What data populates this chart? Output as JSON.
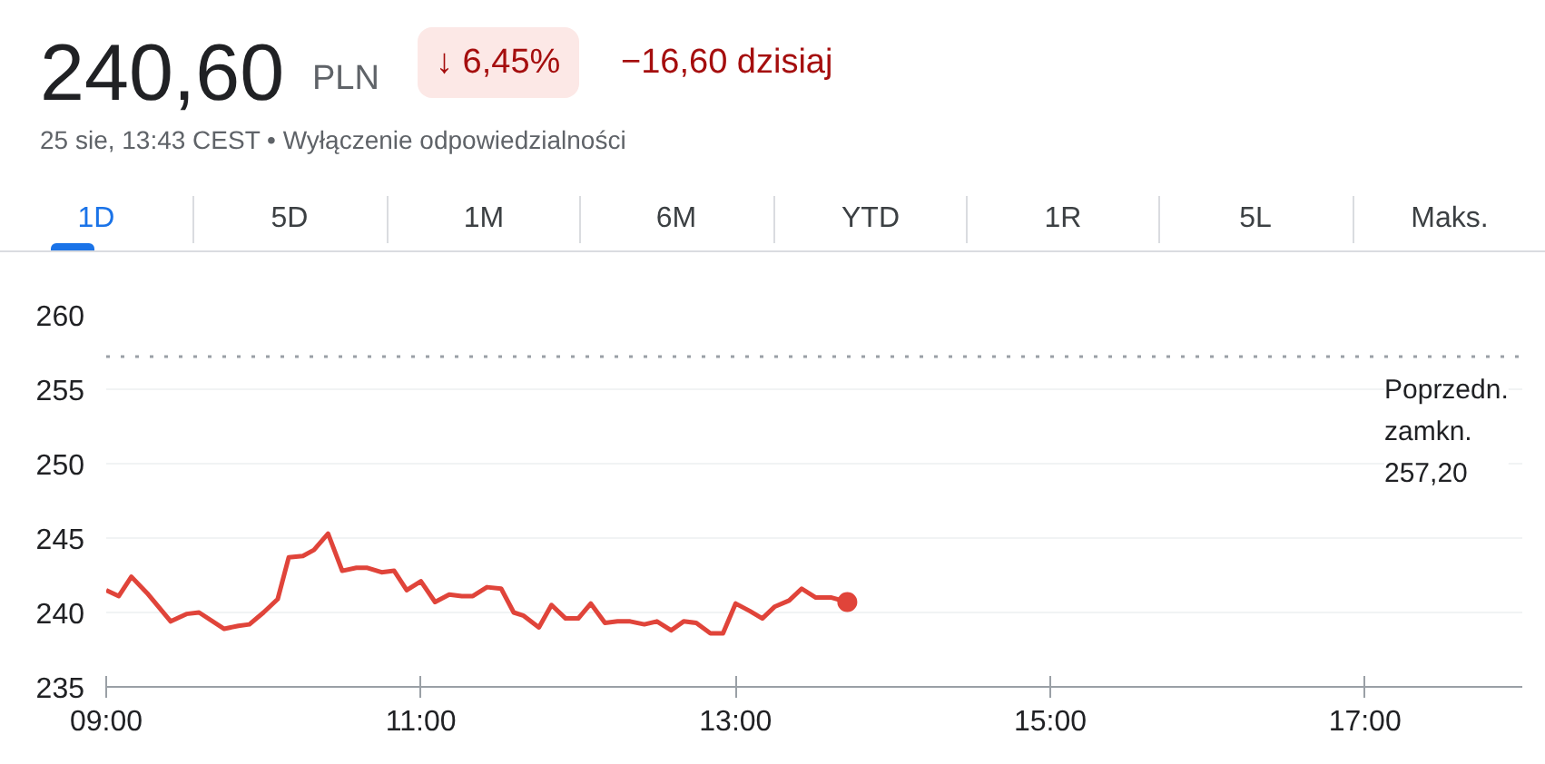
{
  "chart_data": {
    "type": "line",
    "title": "240,60",
    "annotations": [
      "PLN",
      "↓ 6,45%",
      "−16,60 dzisiaj",
      "25 sie, 13:43 CEST • Wyłączenie odpowiedzialności",
      "1D",
      "5D",
      "1M",
      "6M",
      "YTD",
      "1R",
      "5L",
      "Maks."
    ],
    "xlim": [
      9,
      18
    ],
    "ylim": [
      235,
      260
    ],
    "xticks": [
      {
        "value": 9,
        "label": "09:00"
      },
      {
        "value": 11,
        "label": "11:00"
      },
      {
        "value": 13,
        "label": "13:00"
      },
      {
        "value": 15,
        "label": "15:00"
      },
      {
        "value": 17,
        "label": "17:00"
      }
    ],
    "yticks": [
      235,
      240,
      245,
      250,
      255,
      260
    ],
    "grid": "y",
    "ref_lines": [
      {
        "axis": "y",
        "value": 257.2,
        "label": "Poprzedn. zamkn. 257,20",
        "color": "#9aa0a6",
        "line_style": "dotted"
      }
    ],
    "series": [
      {
        "color": "#e0443a",
        "x": [
          9.0,
          9.08,
          9.16,
          9.26,
          9.41,
          9.51,
          9.59,
          9.75,
          9.84,
          9.91,
          10.0,
          10.09,
          10.16,
          10.25,
          10.32,
          10.41,
          10.5,
          10.59,
          10.66,
          10.75,
          10.83,
          10.91,
          11.0,
          11.09,
          11.18,
          11.26,
          11.33,
          11.42,
          11.51,
          11.59,
          11.65,
          11.75,
          11.83,
          11.92,
          12.0,
          12.08,
          12.17,
          12.25,
          12.33,
          12.42,
          12.5,
          12.59,
          12.67,
          12.75,
          12.84,
          12.92,
          13.0,
          13.09,
          13.17,
          13.25,
          13.34,
          13.42,
          13.51,
          13.61,
          13.71
        ],
        "values": [
          241.5,
          241.1,
          242.4,
          241.3,
          239.4,
          239.9,
          240.0,
          238.9,
          239.1,
          239.2,
          240.0,
          240.9,
          243.7,
          243.8,
          244.2,
          245.3,
          242.8,
          243.0,
          243.0,
          242.7,
          242.8,
          241.5,
          242.1,
          240.7,
          241.2,
          241.1,
          241.1,
          241.7,
          241.6,
          240.0,
          239.8,
          239.0,
          240.5,
          239.6,
          239.6,
          240.6,
          239.3,
          239.4,
          239.4,
          239.2,
          239.4,
          238.8,
          239.4,
          239.3,
          238.6,
          238.6,
          240.6,
          240.1,
          239.6,
          240.4,
          240.8,
          241.6,
          241.0,
          241.0,
          240.7
        ]
      },
      {
        "type": "scatter",
        "marker": "circle",
        "color": "#e0443a",
        "x": [
          13.71
        ],
        "values": [
          240.7
        ]
      }
    ]
  }
}
